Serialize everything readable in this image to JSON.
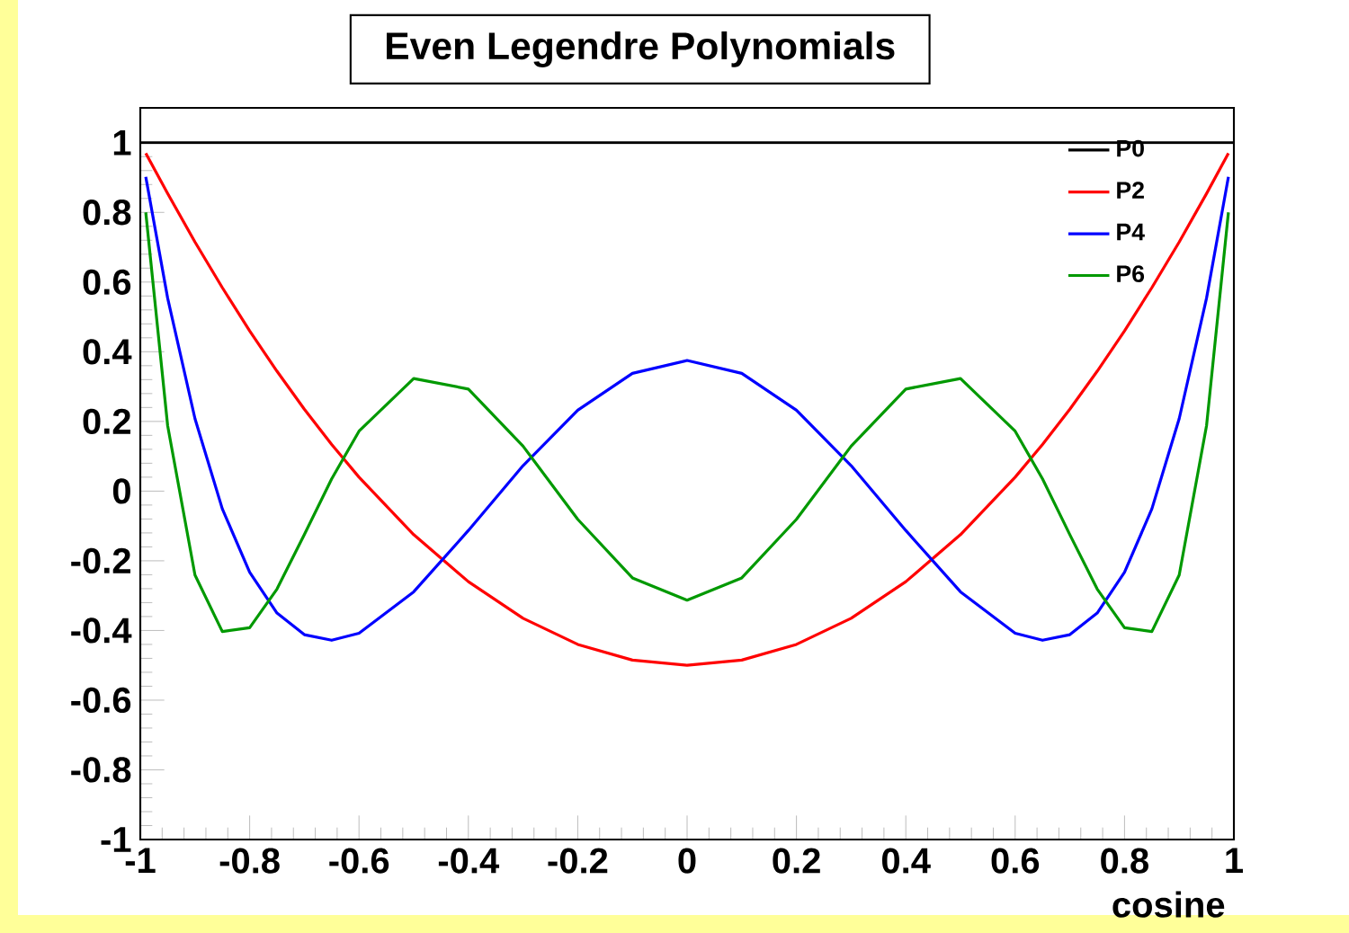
{
  "chart_data": {
    "type": "line",
    "title": "Even Legendre Polynomials",
    "xlabel": "cosine",
    "x": [
      -0.99,
      -0.95,
      -0.9,
      -0.85,
      -0.8,
      -0.75,
      -0.7,
      -0.65,
      -0.6,
      -0.5,
      -0.4,
      -0.3,
      -0.2,
      -0.1,
      0,
      0.1,
      0.2,
      0.3,
      0.4,
      0.5,
      0.6,
      0.65,
      0.7,
      0.75,
      0.8,
      0.85,
      0.9,
      0.95,
      0.99
    ],
    "series": [
      {
        "name": "P0",
        "color": "#000000",
        "x": [
          -1,
          1
        ],
        "values": [
          1,
          1
        ]
      },
      {
        "name": "P2",
        "color": "#ff0000",
        "values": [
          0.97,
          0.854,
          0.715,
          0.584,
          0.46,
          0.344,
          0.235,
          0.134,
          0.04,
          -0.125,
          -0.26,
          -0.365,
          -0.44,
          -0.485,
          -0.5,
          -0.485,
          -0.44,
          -0.365,
          -0.26,
          -0.125,
          0.04,
          0.134,
          0.235,
          0.344,
          0.46,
          0.584,
          0.715,
          0.854,
          0.97
        ]
      },
      {
        "name": "P4",
        "color": "#0000ff",
        "values": [
          0.902,
          0.554,
          0.208,
          -0.051,
          -0.233,
          -0.35,
          -0.412,
          -0.428,
          -0.408,
          -0.289,
          -0.113,
          0.073,
          0.232,
          0.338,
          0.375,
          0.338,
          0.232,
          0.073,
          -0.113,
          -0.289,
          -0.408,
          -0.428,
          -0.412,
          -0.35,
          -0.233,
          -0.051,
          0.208,
          0.554,
          0.902
        ]
      },
      {
        "name": "P6",
        "color": "#009900",
        "values": [
          0.8,
          0.188,
          -0.241,
          -0.403,
          -0.392,
          -0.281,
          -0.125,
          0.035,
          0.172,
          0.323,
          0.293,
          0.129,
          -0.081,
          -0.249,
          -0.313,
          -0.249,
          -0.081,
          0.129,
          0.293,
          0.323,
          0.172,
          0.035,
          -0.125,
          -0.281,
          -0.392,
          -0.403,
          -0.241,
          0.188,
          0.8
        ]
      }
    ],
    "xlim": [
      -1,
      1
    ],
    "ylim": [
      -1,
      1.1
    ],
    "xticks": [
      -1,
      -0.8,
      -0.6,
      -0.4,
      -0.2,
      0,
      0.2,
      0.4,
      0.6,
      0.8,
      1
    ],
    "yticks": [
      -1,
      -0.8,
      -0.6,
      -0.4,
      -0.2,
      0,
      0.2,
      0.4,
      0.6,
      0.8,
      1
    ],
    "legend": "top right",
    "grid": false,
    "marker": "none",
    "line_style": "solid"
  }
}
